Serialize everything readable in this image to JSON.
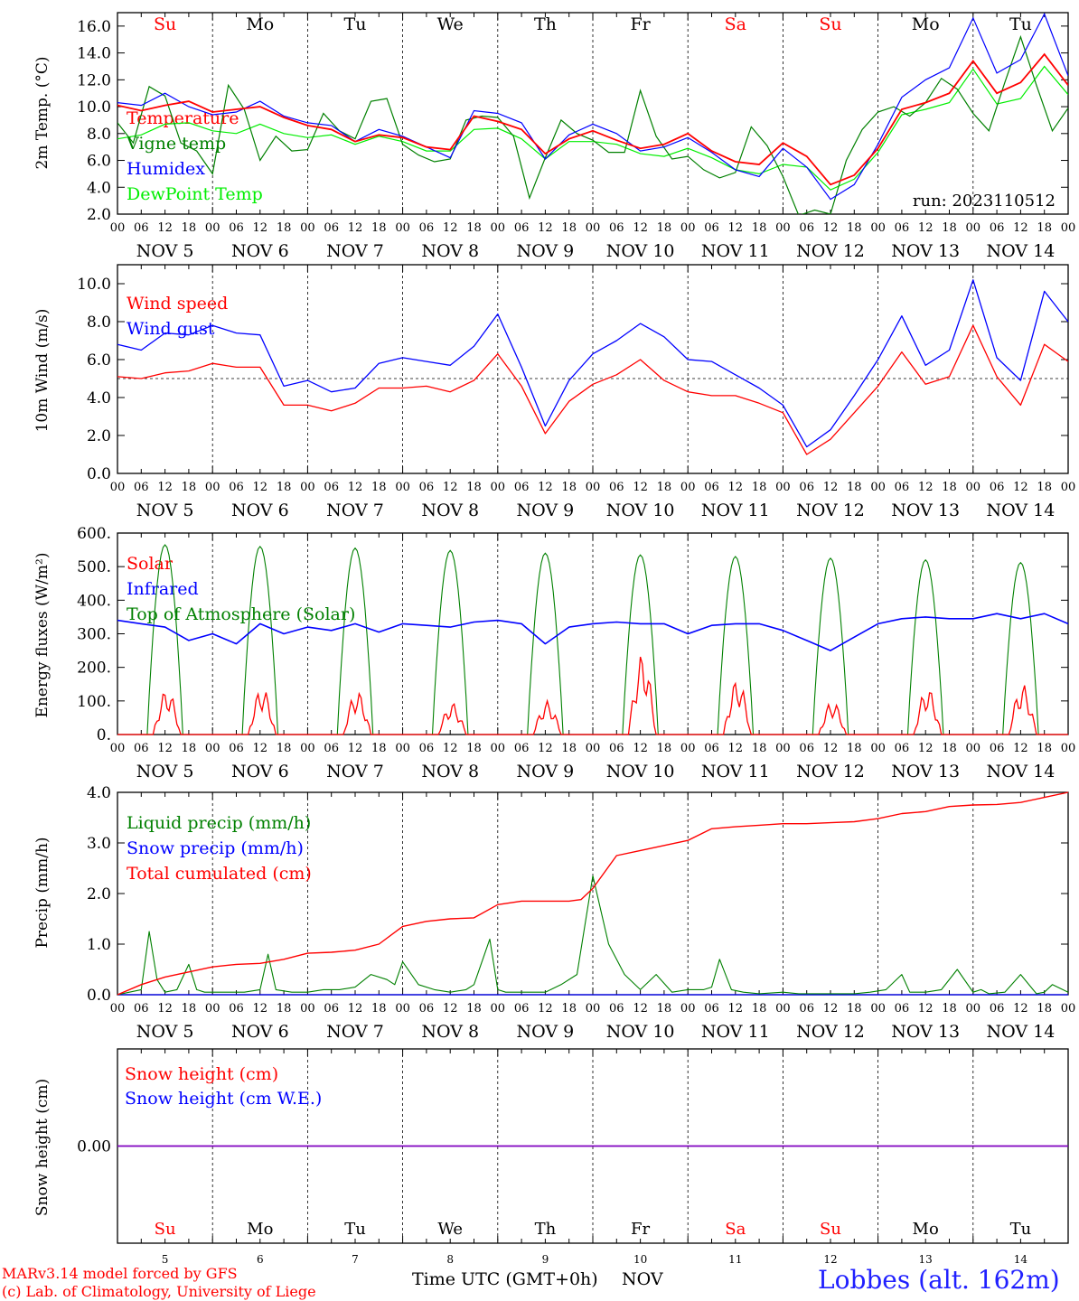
{
  "run_label": "run: 2023110512",
  "day_names": [
    "Su",
    "Mo",
    "Tu",
    "We",
    "Th",
    "Fr",
    "Sa",
    "Su",
    "Mo",
    "Tu"
  ],
  "weekend_flags": [
    true,
    false,
    false,
    false,
    false,
    false,
    true,
    true,
    false,
    false
  ],
  "date_labels": [
    "NOV  5",
    "NOV  6",
    "NOV  7",
    "NOV  8",
    "NOV  9",
    "NOV 10",
    "NOV 11",
    "NOV 12",
    "NOV 13",
    "NOV 14"
  ],
  "hour_labels": [
    "00",
    "06",
    "12",
    "18"
  ],
  "bottom_days": [
    "5",
    "6",
    "7",
    "8",
    "9",
    "10",
    "11",
    "12",
    "13",
    "14"
  ],
  "xlabel": "Time UTC (GMT+0h)",
  "month": "NOV",
  "footer": {
    "line1": "MARv3.14 model forced by GFS",
    "line2": "(c) Lab. of Climatology, University of Liege",
    "station": "Lobbes (alt. 162m)"
  },
  "colors": {
    "red": "#ff0000",
    "green": "#008000",
    "blue": "#0000ff",
    "lightgreen": "#00ee00",
    "purple": "#7f00bf",
    "text": "#000000"
  },
  "chart_data": [
    {
      "type": "line",
      "ylabel": "2m Temp. (°C)",
      "ylim": [
        2,
        17
      ],
      "yticks": [
        "2.0",
        "4.0",
        "6.0",
        "8.0",
        "10.0",
        "12.0",
        "14.0",
        "16.0"
      ],
      "x_hours_start": 0,
      "x_hours_end": 240,
      "legend": [
        "Temperature",
        "Vigne temp",
        "Humidex",
        "DewPoint Temp"
      ],
      "series": [
        {
          "name": "Temperature",
          "color": "#ff0000",
          "x": [
            0,
            6,
            12,
            18,
            24,
            30,
            36,
            42,
            48,
            54,
            60,
            66,
            72,
            78,
            84,
            90,
            96,
            102,
            108,
            114,
            120,
            126,
            132,
            138,
            144,
            150,
            156,
            162,
            168,
            174,
            180,
            186,
            192,
            198,
            204,
            210,
            216,
            222,
            228,
            234,
            240
          ],
          "values": [
            10.1,
            9.7,
            10.1,
            10.4,
            9.6,
            9.8,
            10.0,
            9.2,
            8.6,
            8.3,
            7.4,
            7.9,
            7.7,
            7.0,
            6.8,
            9.3,
            8.9,
            8.3,
            6.5,
            7.6,
            8.2,
            7.5,
            6.9,
            7.2,
            8.0,
            6.7,
            5.9,
            5.7,
            7.3,
            6.3,
            4.2,
            4.9,
            6.9,
            9.8,
            10.3,
            11.0,
            13.4,
            11.0,
            11.8,
            13.9,
            11.6
          ]
        },
        {
          "name": "Vigne temp",
          "color": "#008000",
          "x": [
            0,
            4,
            8,
            12,
            16,
            20,
            24,
            28,
            32,
            36,
            40,
            44,
            48,
            52,
            56,
            60,
            64,
            68,
            72,
            76,
            80,
            84,
            88,
            92,
            96,
            100,
            104,
            108,
            112,
            116,
            120,
            124,
            128,
            132,
            136,
            140,
            144,
            148,
            152,
            156,
            160,
            164,
            168,
            172,
            176,
            180,
            184,
            188,
            192,
            196,
            200,
            204,
            208,
            212,
            216,
            220,
            224,
            228,
            232,
            236,
            240
          ],
          "values": [
            8.8,
            7.3,
            11.5,
            10.8,
            7.3,
            6.7,
            5.0,
            11.6,
            9.8,
            6.0,
            7.8,
            6.7,
            6.8,
            9.5,
            8.2,
            7.6,
            10.4,
            10.6,
            7.2,
            6.4,
            5.9,
            6.1,
            9.0,
            9.3,
            9.2,
            7.8,
            3.2,
            6.2,
            9.0,
            8.0,
            7.5,
            6.6,
            6.6,
            11.2,
            7.8,
            6.1,
            6.3,
            5.3,
            4.7,
            5.1,
            8.5,
            7.1,
            4.8,
            1.9,
            2.3,
            2.0,
            6.0,
            8.3,
            9.6,
            10.0,
            9.3,
            10.3,
            12.1,
            11.3,
            9.5,
            8.2,
            11.8,
            15.2,
            11.6,
            8.2,
            9.9
          ]
        },
        {
          "name": "Humidex",
          "color": "#0000ff",
          "x": [
            0,
            6,
            12,
            18,
            24,
            30,
            36,
            42,
            48,
            54,
            60,
            66,
            72,
            78,
            84,
            90,
            96,
            102,
            108,
            114,
            120,
            126,
            132,
            138,
            144,
            150,
            156,
            162,
            168,
            174,
            180,
            186,
            192,
            198,
            204,
            210,
            216,
            222,
            228,
            234,
            240
          ],
          "values": [
            10.3,
            10.1,
            11.0,
            10.0,
            9.4,
            9.6,
            10.4,
            9.3,
            8.8,
            8.6,
            7.4,
            8.3,
            7.8,
            7.0,
            6.2,
            9.7,
            9.5,
            8.8,
            6.1,
            7.9,
            8.7,
            8.0,
            6.7,
            7.0,
            7.7,
            6.6,
            5.3,
            4.8,
            6.9,
            5.5,
            3.1,
            4.2,
            7.2,
            10.7,
            12.0,
            12.9,
            16.6,
            12.5,
            13.5,
            16.9,
            12.3
          ]
        },
        {
          "name": "DewPoint Temp",
          "color": "#00ee00",
          "x": [
            0,
            6,
            12,
            18,
            24,
            30,
            36,
            42,
            48,
            54,
            60,
            66,
            72,
            78,
            84,
            90,
            96,
            102,
            108,
            114,
            120,
            126,
            132,
            138,
            144,
            150,
            156,
            162,
            168,
            174,
            180,
            186,
            192,
            198,
            204,
            210,
            216,
            222,
            228,
            234,
            240
          ],
          "values": [
            7.6,
            7.9,
            8.7,
            8.8,
            8.2,
            8.0,
            8.7,
            8.0,
            7.7,
            7.9,
            7.2,
            7.8,
            7.4,
            6.7,
            6.7,
            8.3,
            8.4,
            7.6,
            6.1,
            7.4,
            7.4,
            7.2,
            6.5,
            6.3,
            6.9,
            6.2,
            5.3,
            5.0,
            5.7,
            5.5,
            3.8,
            4.6,
            6.6,
            9.4,
            9.8,
            10.3,
            12.8,
            10.2,
            10.6,
            13.0,
            10.9
          ]
        }
      ]
    },
    {
      "type": "line",
      "ylabel": "10m Wind (m/s)",
      "ylim": [
        0,
        11
      ],
      "yticks": [
        "0.0",
        "2.0",
        "4.0",
        "6.0",
        "8.0",
        "10.0"
      ],
      "reference_line": 5.0,
      "legend": [
        "Wind speed",
        "Wind gust"
      ],
      "series": [
        {
          "name": "Wind speed",
          "color": "#ff0000",
          "x": [
            0,
            6,
            12,
            18,
            24,
            30,
            36,
            42,
            48,
            54,
            60,
            66,
            72,
            78,
            84,
            90,
            96,
            102,
            108,
            114,
            120,
            126,
            132,
            138,
            144,
            150,
            156,
            162,
            168,
            174,
            180,
            186,
            192,
            198,
            204,
            210,
            216,
            222,
            228,
            234,
            240
          ],
          "values": [
            5.1,
            5.0,
            5.3,
            5.4,
            5.8,
            5.6,
            5.6,
            3.6,
            3.6,
            3.3,
            3.7,
            4.5,
            4.5,
            4.6,
            4.3,
            4.9,
            6.3,
            4.6,
            2.1,
            3.8,
            4.7,
            5.2,
            6.0,
            4.9,
            4.3,
            4.1,
            4.1,
            3.7,
            3.2,
            1.0,
            1.8,
            3.2,
            4.6,
            6.4,
            4.7,
            5.1,
            7.8,
            5.1,
            3.6,
            6.8,
            5.9
          ]
        },
        {
          "name": "Wind gust",
          "color": "#0000ff",
          "x": [
            0,
            6,
            12,
            18,
            24,
            30,
            36,
            42,
            48,
            54,
            60,
            66,
            72,
            78,
            84,
            90,
            96,
            102,
            108,
            114,
            120,
            126,
            132,
            138,
            144,
            150,
            156,
            162,
            168,
            174,
            180,
            186,
            192,
            198,
            204,
            210,
            216,
            222,
            228,
            234,
            240
          ],
          "values": [
            6.8,
            6.5,
            7.4,
            7.3,
            7.8,
            7.4,
            7.3,
            4.6,
            4.9,
            4.3,
            4.5,
            5.8,
            6.1,
            5.9,
            5.7,
            6.7,
            8.4,
            5.6,
            2.5,
            4.9,
            6.3,
            7.0,
            7.9,
            7.2,
            6.0,
            5.9,
            5.2,
            4.5,
            3.6,
            1.4,
            2.3,
            4.1,
            6.0,
            8.3,
            5.7,
            6.5,
            10.2,
            6.1,
            4.9,
            9.6,
            8.0
          ]
        }
      ]
    },
    {
      "type": "line",
      "ylabel": "Energy fluxes (W/m²)",
      "ylim": [
        0,
        600
      ],
      "yticks": [
        "0.",
        "100.",
        "200.",
        "300.",
        "400.",
        "500.",
        "600."
      ],
      "legend": [
        "Solar",
        "Infrared",
        "Top of Atmosphere (Solar)"
      ],
      "toa_peaks": [
        565,
        560,
        555,
        548,
        540,
        535,
        530,
        525,
        520,
        512
      ],
      "solar_peaks": [
        135,
        140,
        130,
        95,
        100,
        240,
        165,
        100,
        140,
        150
      ],
      "series": [
        {
          "name": "Solar",
          "color": "#ff0000"
        },
        {
          "name": "Infrared",
          "color": "#0000ff",
          "x": [
            0,
            6,
            12,
            18,
            24,
            30,
            36,
            42,
            48,
            54,
            60,
            66,
            72,
            78,
            84,
            90,
            96,
            102,
            108,
            114,
            120,
            126,
            132,
            138,
            144,
            150,
            156,
            162,
            168,
            174,
            180,
            186,
            192,
            198,
            204,
            210,
            216,
            222,
            228,
            234,
            240
          ],
          "values": [
            340,
            330,
            320,
            280,
            300,
            270,
            330,
            300,
            320,
            310,
            330,
            305,
            330,
            325,
            320,
            335,
            340,
            330,
            270,
            320,
            330,
            335,
            330,
            330,
            300,
            325,
            330,
            330,
            310,
            280,
            250,
            290,
            330,
            345,
            350,
            345,
            345,
            360,
            345,
            360,
            330
          ]
        },
        {
          "name": "Top of Atmosphere (Solar)",
          "color": "#008000"
        }
      ]
    },
    {
      "type": "line",
      "ylabel": "Precip (mm/h)",
      "ylim": [
        0,
        4
      ],
      "yticks": [
        "0.0",
        "1.0",
        "2.0",
        "3.0",
        "4.0"
      ],
      "legend": [
        "Liquid precip (mm/h)",
        "Snow precip (mm/h)",
        "Total cumulated (cm)"
      ],
      "series": [
        {
          "name": "Liquid precip (mm/h)",
          "color": "#008000",
          "x": [
            0,
            3,
            6,
            8,
            10,
            12,
            15,
            18,
            20,
            22,
            24,
            28,
            32,
            36,
            38,
            40,
            44,
            48,
            52,
            56,
            60,
            64,
            68,
            70,
            72,
            76,
            80,
            84,
            88,
            90,
            94,
            96,
            98,
            100,
            104,
            108,
            112,
            116,
            120,
            124,
            128,
            132,
            136,
            140,
            144,
            148,
            150,
            152,
            155,
            158,
            162,
            168,
            172,
            176,
            180,
            186,
            190,
            194,
            198,
            200,
            204,
            208,
            212,
            216,
            218,
            220,
            224,
            228,
            232,
            234,
            236,
            240
          ],
          "values": [
            0,
            0.05,
            0.1,
            1.25,
            0.3,
            0.05,
            0.1,
            0.6,
            0.1,
            0.05,
            0.05,
            0.05,
            0.05,
            0.1,
            0.8,
            0.1,
            0.05,
            0.05,
            0.1,
            0.1,
            0.15,
            0.4,
            0.3,
            0.2,
            0.65,
            0.2,
            0.1,
            0.05,
            0.1,
            0.2,
            1.1,
            0.1,
            0.05,
            0.05,
            0.05,
            0.05,
            0.2,
            0.4,
            2.35,
            1.0,
            0.4,
            0.1,
            0.4,
            0.05,
            0.1,
            0.1,
            0.15,
            0.7,
            0.1,
            0.05,
            0.02,
            0.05,
            0.02,
            0.02,
            0.02,
            0.02,
            0.05,
            0.1,
            0.4,
            0.05,
            0.05,
            0.1,
            0.5,
            0.05,
            0.1,
            0.02,
            0.05,
            0.4,
            0.02,
            0.05,
            0.2,
            0.05
          ]
        },
        {
          "name": "Snow precip (mm/h)",
          "color": "#0000ff",
          "x": [
            0,
            240
          ],
          "values": [
            0,
            0
          ]
        },
        {
          "name": "Total cumulated (cm)",
          "color": "#ff0000",
          "x": [
            0,
            6,
            12,
            18,
            24,
            30,
            36,
            42,
            48,
            54,
            60,
            66,
            72,
            78,
            84,
            90,
            96,
            102,
            108,
            114,
            117,
            120,
            126,
            132,
            138,
            144,
            150,
            156,
            162,
            168,
            174,
            180,
            186,
            192,
            198,
            204,
            210,
            216,
            222,
            228,
            234,
            240
          ],
          "values": [
            0,
            0.2,
            0.35,
            0.45,
            0.55,
            0.6,
            0.62,
            0.7,
            0.82,
            0.84,
            0.88,
            1.0,
            1.35,
            1.45,
            1.5,
            1.52,
            1.78,
            1.85,
            1.85,
            1.85,
            1.88,
            2.1,
            2.75,
            2.85,
            2.95,
            3.05,
            3.28,
            3.32,
            3.35,
            3.38,
            3.38,
            3.4,
            3.42,
            3.48,
            3.58,
            3.62,
            3.72,
            3.75,
            3.76,
            3.8,
            3.9,
            4.0
          ]
        }
      ]
    },
    {
      "type": "line",
      "ylabel": "Snow height (cm)",
      "yticks": [
        "0.00"
      ],
      "legend": [
        "Snow height (cm)",
        "Snow height (cm W.E.)"
      ],
      "series": [
        {
          "name": "Snow height (cm)",
          "color": "#ff0000",
          "x": [
            0,
            240
          ],
          "values": [
            0,
            0
          ]
        },
        {
          "name": "Snow height (cm W.E.)",
          "color": "#0000ff",
          "x": [
            0,
            240
          ],
          "values": [
            0,
            0
          ]
        }
      ]
    }
  ]
}
